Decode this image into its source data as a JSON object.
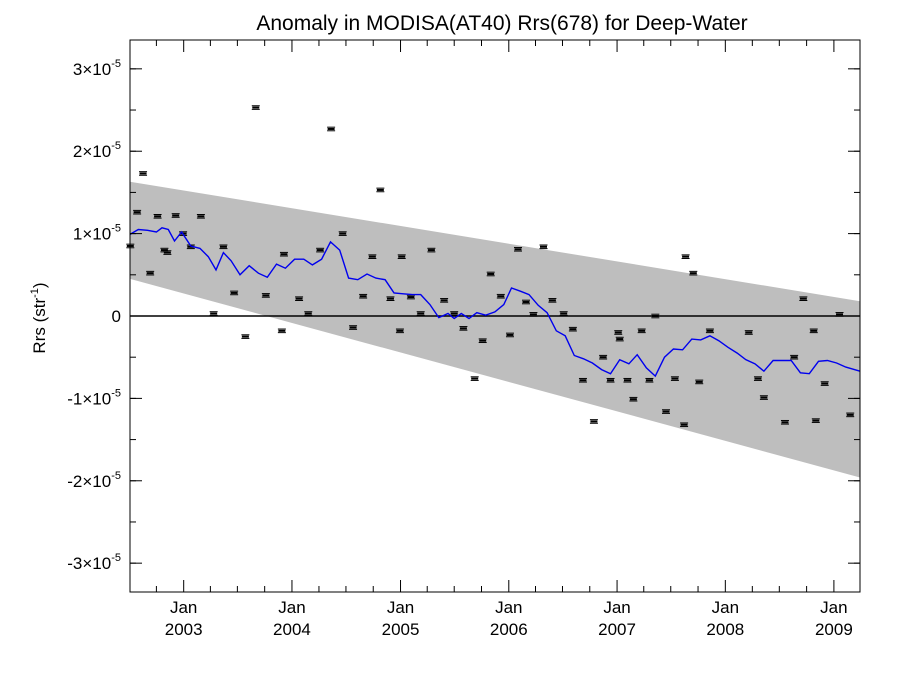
{
  "chart_data": {
    "type": "scatter",
    "title": "Anomaly in MODISA(AT40) Rrs(678) for Deep-Water",
    "ylabel": {
      "base": "Rrs (str",
      "sup": "-1",
      "close": ")"
    },
    "xlabel": "",
    "xlim": [
      "2002-07-04",
      "2009-03-30"
    ],
    "ylim": [
      -3.35e-05,
      3.35e-05
    ],
    "grid": false,
    "y_ticks": [
      {
        "value": -3e-05,
        "mantissa": "-3",
        "base": "×10",
        "exp": "-5"
      },
      {
        "value": -2e-05,
        "mantissa": "-2",
        "base": "×10",
        "exp": "-5"
      },
      {
        "value": -1e-05,
        "mantissa": "-1",
        "base": "×10",
        "exp": "-5"
      },
      {
        "value": 0,
        "mantissa": "0",
        "base": "",
        "exp": ""
      },
      {
        "value": 1e-05,
        "mantissa": "1",
        "base": "×10",
        "exp": "-5"
      },
      {
        "value": 2e-05,
        "mantissa": "2",
        "base": "×10",
        "exp": "-5"
      },
      {
        "value": 3e-05,
        "mantissa": "3",
        "base": "×10",
        "exp": "-5"
      }
    ],
    "x_ticks": [
      {
        "date": "2003-01-01",
        "month": "Jan",
        "year": "2003"
      },
      {
        "date": "2004-01-01",
        "month": "Jan",
        "year": "2004"
      },
      {
        "date": "2005-01-01",
        "month": "Jan",
        "year": "2005"
      },
      {
        "date": "2006-01-01",
        "month": "Jan",
        "year": "2006"
      },
      {
        "date": "2007-01-01",
        "month": "Jan",
        "year": "2007"
      },
      {
        "date": "2008-01-01",
        "month": "Jan",
        "year": "2008"
      },
      {
        "date": "2009-01-01",
        "month": "Jan",
        "year": "2009"
      }
    ],
    "zero_line": 0,
    "band": {
      "color": "#bebebe",
      "upper": [
        [
          "2002-07-04",
          1.63e-05
        ],
        [
          "2009-03-30",
          1.8e-06
        ]
      ],
      "lower": [
        [
          "2002-07-04",
          4.5e-06
        ],
        [
          "2009-03-30",
          -1.96e-05
        ]
      ]
    },
    "series": [
      {
        "type": "scatter",
        "marker": "point-with-errorbar",
        "color": "#000000",
        "points": [
          [
            "2002-07-05",
            8.5e-06
          ],
          [
            "2002-07-28",
            1.26e-05
          ],
          [
            "2002-08-17",
            1.73e-05
          ],
          [
            "2002-09-10",
            5.2e-06
          ],
          [
            "2002-10-05",
            1.21e-05
          ],
          [
            "2002-10-28",
            8e-06
          ],
          [
            "2002-11-07",
            7.7e-06
          ],
          [
            "2002-12-05",
            1.22e-05
          ],
          [
            "2002-12-30",
            1e-05
          ],
          [
            "2003-01-25",
            8.4e-06
          ],
          [
            "2003-02-28",
            1.21e-05
          ],
          [
            "2003-04-12",
            3e-07
          ],
          [
            "2003-05-15",
            8.4e-06
          ],
          [
            "2003-06-20",
            2.8e-06
          ],
          [
            "2003-07-28",
            -2.5e-06
          ],
          [
            "2003-09-01",
            2.53e-05
          ],
          [
            "2003-10-05",
            2.5e-06
          ],
          [
            "2003-11-28",
            -1.8e-06
          ],
          [
            "2003-12-05",
            7.5e-06
          ],
          [
            "2004-01-25",
            2.1e-06
          ],
          [
            "2004-02-25",
            3e-07
          ],
          [
            "2004-04-05",
            8e-06
          ],
          [
            "2004-05-12",
            2.27e-05
          ],
          [
            "2004-06-20",
            1e-05
          ],
          [
            "2004-07-25",
            -1.4e-06
          ],
          [
            "2004-08-28",
            2.4e-06
          ],
          [
            "2004-09-28",
            7.2e-06
          ],
          [
            "2004-10-25",
            1.53e-05
          ],
          [
            "2004-11-28",
            2.1e-06
          ],
          [
            "2004-12-30",
            -1.8e-06
          ],
          [
            "2005-01-05",
            7.2e-06
          ],
          [
            "2005-02-05",
            2.3e-06
          ],
          [
            "2005-03-10",
            3e-07
          ],
          [
            "2005-04-15",
            8e-06
          ],
          [
            "2005-05-28",
            1.9e-06
          ],
          [
            "2005-07-01",
            3e-07
          ],
          [
            "2005-08-01",
            -1.5e-06
          ],
          [
            "2005-09-08",
            -7.6e-06
          ],
          [
            "2005-10-05",
            -3e-06
          ],
          [
            "2005-11-01",
            5.1e-06
          ],
          [
            "2005-12-05",
            2.4e-06
          ],
          [
            "2006-01-05",
            -2.3e-06
          ],
          [
            "2006-02-01",
            8.1e-06
          ],
          [
            "2006-02-28",
            1.7e-06
          ],
          [
            "2006-03-25",
            2e-07
          ],
          [
            "2006-04-28",
            8.4e-06
          ],
          [
            "2006-05-28",
            1.9e-06
          ],
          [
            "2006-07-05",
            3e-07
          ],
          [
            "2006-08-05",
            -1.6e-06
          ],
          [
            "2006-09-08",
            -7.8e-06
          ],
          [
            "2006-10-15",
            -1.28e-05
          ],
          [
            "2006-11-15",
            -5e-06
          ],
          [
            "2006-12-10",
            -7.8e-06
          ],
          [
            "2007-01-05",
            -2e-06
          ],
          [
            "2007-01-10",
            -2.8e-06
          ],
          [
            "2007-02-05",
            -7.8e-06
          ],
          [
            "2007-02-25",
            -1.01e-05
          ],
          [
            "2007-03-25",
            -1.8e-06
          ],
          [
            "2007-04-20",
            -7.8e-06
          ],
          [
            "2007-05-10",
            0.0
          ],
          [
            "2007-06-15",
            -1.16e-05
          ],
          [
            "2007-07-15",
            -7.6e-06
          ],
          [
            "2007-08-15",
            -1.32e-05
          ],
          [
            "2007-08-20",
            7.2e-06
          ],
          [
            "2007-09-15",
            5.2e-06
          ],
          [
            "2007-10-05",
            -8e-06
          ],
          [
            "2007-11-10",
            -1.8e-06
          ],
          [
            "2008-03-20",
            -2e-06
          ],
          [
            "2008-04-20",
            -7.6e-06
          ],
          [
            "2008-05-10",
            -9.9e-06
          ],
          [
            "2008-07-20",
            -1.29e-05
          ],
          [
            "2008-08-20",
            -5e-06
          ],
          [
            "2008-09-20",
            2.1e-06
          ],
          [
            "2008-10-25",
            -1.8e-06
          ],
          [
            "2008-11-01",
            -1.27e-05
          ],
          [
            "2008-12-01",
            -8.2e-06
          ],
          [
            "2009-01-20",
            2e-07
          ],
          [
            "2009-02-25",
            -1.2e-05
          ]
        ]
      },
      {
        "type": "line",
        "color": "#0000ee",
        "points": [
          [
            "2002-07-04",
            9.9e-06
          ],
          [
            "2002-08-01",
            1.05e-05
          ],
          [
            "2002-09-01",
            1.04e-05
          ],
          [
            "2002-10-01",
            1.02e-05
          ],
          [
            "2002-10-20",
            1.07e-05
          ],
          [
            "2002-11-10",
            1.05e-05
          ],
          [
            "2002-12-01",
            9.1e-06
          ],
          [
            "2002-12-25",
            1.02e-05
          ],
          [
            "2003-01-25",
            8.5e-06
          ],
          [
            "2003-02-25",
            8.2e-06
          ],
          [
            "2003-03-25",
            7.2e-06
          ],
          [
            "2003-04-20",
            5.6e-06
          ],
          [
            "2003-05-15",
            7.7e-06
          ],
          [
            "2003-06-10",
            6.7e-06
          ],
          [
            "2003-07-10",
            5e-06
          ],
          [
            "2003-08-10",
            6.1e-06
          ],
          [
            "2003-09-10",
            5.2e-06
          ],
          [
            "2003-10-10",
            4.7e-06
          ],
          [
            "2003-11-10",
            6.3e-06
          ],
          [
            "2003-12-10",
            5.8e-06
          ],
          [
            "2004-01-10",
            6.9e-06
          ],
          [
            "2004-02-10",
            6.9e-06
          ],
          [
            "2004-03-10",
            6.2e-06
          ],
          [
            "2004-04-10",
            6.9e-06
          ],
          [
            "2004-05-10",
            9e-06
          ],
          [
            "2004-06-10",
            8e-06
          ],
          [
            "2004-07-10",
            4.6e-06
          ],
          [
            "2004-08-10",
            4.4e-06
          ],
          [
            "2004-09-10",
            5.1e-06
          ],
          [
            "2004-10-10",
            4.6e-06
          ],
          [
            "2004-11-10",
            4.4e-06
          ],
          [
            "2004-12-10",
            2.8e-06
          ],
          [
            "2005-01-10",
            2.7e-06
          ],
          [
            "2005-02-10",
            2.6e-06
          ],
          [
            "2005-03-10",
            2.6e-06
          ],
          [
            "2005-04-10",
            1.4e-06
          ],
          [
            "2005-05-10",
            -2e-07
          ],
          [
            "2005-06-10",
            3e-07
          ],
          [
            "2005-07-01",
            -3e-07
          ],
          [
            "2005-07-25",
            3e-07
          ],
          [
            "2005-08-20",
            -3e-07
          ],
          [
            "2005-09-15",
            4e-07
          ],
          [
            "2005-10-15",
            1e-07
          ],
          [
            "2005-11-15",
            5e-07
          ],
          [
            "2005-12-15",
            1.4e-06
          ],
          [
            "2006-01-10",
            3.4e-06
          ],
          [
            "2006-02-10",
            3e-06
          ],
          [
            "2006-03-10",
            2.6e-06
          ],
          [
            "2006-04-10",
            1.3e-06
          ],
          [
            "2006-05-10",
            4e-07
          ],
          [
            "2006-06-10",
            -1.8e-06
          ],
          [
            "2006-07-10",
            -2.4e-06
          ],
          [
            "2006-08-10",
            -4.8e-06
          ],
          [
            "2006-09-10",
            -5.2e-06
          ],
          [
            "2006-10-10",
            -5.7e-06
          ],
          [
            "2006-11-10",
            -6.5e-06
          ],
          [
            "2006-12-10",
            -7e-06
          ],
          [
            "2007-01-10",
            -5.3e-06
          ],
          [
            "2007-02-10",
            -5.8e-06
          ],
          [
            "2007-03-10",
            -4.7e-06
          ],
          [
            "2007-04-10",
            -6.3e-06
          ],
          [
            "2007-05-10",
            -7.3e-06
          ],
          [
            "2007-06-10",
            -5e-06
          ],
          [
            "2007-07-10",
            -4e-06
          ],
          [
            "2007-08-10",
            -4.1e-06
          ],
          [
            "2007-09-10",
            -2.8e-06
          ],
          [
            "2007-10-10",
            -2.9e-06
          ],
          [
            "2007-11-10",
            -2.4e-06
          ],
          [
            "2007-12-10",
            -3e-06
          ],
          [
            "2008-01-10",
            -3.8e-06
          ],
          [
            "2008-02-10",
            -4.5e-06
          ],
          [
            "2008-03-10",
            -5.3e-06
          ],
          [
            "2008-04-10",
            -5.8e-06
          ],
          [
            "2008-05-10",
            -6.7e-06
          ],
          [
            "2008-06-10",
            -5.4e-06
          ],
          [
            "2008-07-10",
            -5.4e-06
          ],
          [
            "2008-08-10",
            -5.4e-06
          ],
          [
            "2008-09-10",
            -6.9e-06
          ],
          [
            "2008-10-10",
            -7e-06
          ],
          [
            "2008-11-10",
            -5.5e-06
          ],
          [
            "2008-12-10",
            -5.4e-06
          ],
          [
            "2009-01-10",
            -5.7e-06
          ],
          [
            "2009-02-10",
            -6.2e-06
          ],
          [
            "2009-03-30",
            -6.7e-06
          ]
        ]
      }
    ]
  }
}
